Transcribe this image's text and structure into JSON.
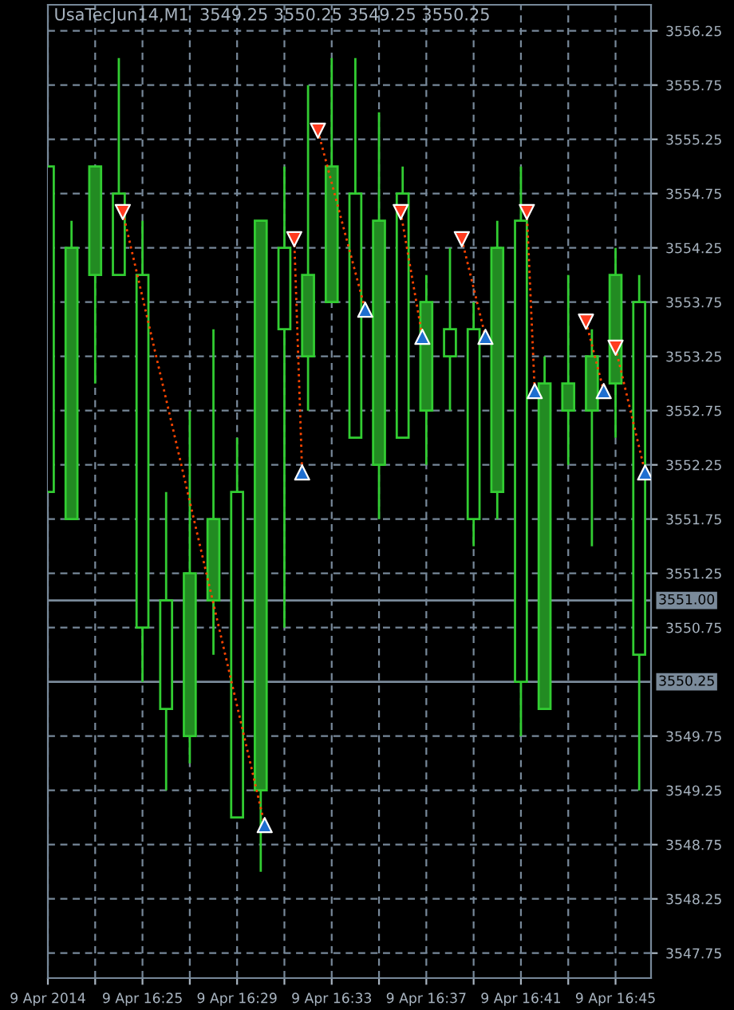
{
  "chart_data": {
    "type": "candlestick",
    "title": "UsaTecJun14,M1  3549.25 3550.25 3549.25 3550.25",
    "x": [
      "2014-04-09T16:21",
      "2014-04-09T16:22",
      "2014-04-09T16:23",
      "2014-04-09T16:24",
      "2014-04-09T16:25",
      "2014-04-09T16:26",
      "2014-04-09T16:27",
      "2014-04-09T16:28",
      "2014-04-09T16:29",
      "2014-04-09T16:30",
      "2014-04-09T16:31",
      "2014-04-09T16:32",
      "2014-04-09T16:33",
      "2014-04-09T16:34",
      "2014-04-09T16:35",
      "2014-04-09T16:36",
      "2014-04-09T16:37",
      "2014-04-09T16:38",
      "2014-04-09T16:39",
      "2014-04-09T16:40",
      "2014-04-09T16:41",
      "2014-04-09T16:42",
      "2014-04-09T16:43",
      "2014-04-09T16:44",
      "2014-04-09T16:45",
      "2014-04-09T16:46"
    ],
    "ohlc": [
      [
        3555.0,
        3555.0,
        3552.0,
        3552.0
      ],
      [
        3551.75,
        3554.5,
        3551.75,
        3554.25
      ],
      [
        3554.0,
        3555.0,
        3553.0,
        3555.0
      ],
      [
        3554.75,
        3556.0,
        3554.0,
        3554.0
      ],
      [
        3554.0,
        3554.5,
        3550.25,
        3550.75
      ],
      [
        3551.0,
        3552.0,
        3549.25,
        3550.0
      ],
      [
        3549.75,
        3552.75,
        3549.5,
        3551.25
      ],
      [
        3551.0,
        3553.5,
        3550.5,
        3551.75
      ],
      [
        3552.0,
        3552.5,
        3549.0,
        3549.0
      ],
      [
        3549.25,
        3554.5,
        3548.5,
        3554.5
      ],
      [
        3554.25,
        3555.0,
        3550.75,
        3553.5
      ],
      [
        3553.25,
        3555.75,
        3552.75,
        3554.0
      ],
      [
        3553.75,
        3556.0,
        3553.75,
        3555.0
      ],
      [
        3554.75,
        3556.0,
        3552.5,
        3552.5
      ],
      [
        3552.25,
        3555.5,
        3551.75,
        3554.5
      ],
      [
        3554.75,
        3555.0,
        3552.5,
        3552.5
      ],
      [
        3552.75,
        3554.0,
        3552.25,
        3553.75
      ],
      [
        3553.5,
        3554.25,
        3552.75,
        3553.25
      ],
      [
        3553.5,
        3553.75,
        3551.5,
        3551.75
      ],
      [
        3552.0,
        3554.5,
        3551.75,
        3554.25
      ],
      [
        3554.5,
        3555.0,
        3549.75,
        3550.25
      ],
      [
        3550.0,
        3553.25,
        3550.0,
        3553.0
      ],
      [
        3552.75,
        3554.0,
        3552.25,
        3553.0
      ],
      [
        3552.75,
        3553.5,
        3551.5,
        3553.25
      ],
      [
        3553.0,
        3554.25,
        3552.5,
        3554.0
      ],
      [
        3553.75,
        3554.0,
        3549.25,
        3550.5
      ]
    ],
    "color": "#32cd32",
    "colors": [
      "#000000",
      "#228b22",
      "#228b22",
      "#000000",
      "#000000",
      "#000000",
      "#228b22",
      "#228b22",
      "#000000",
      "#228b22",
      "#000000",
      "#228b22",
      "#228b22",
      "#000000",
      "#228b22",
      "#000000",
      "#228b22",
      "#000000",
      "#000000",
      "#228b22",
      "#000000",
      "#228b22",
      "#228b22",
      "#228b22",
      "#228b22",
      "#000000"
    ],
    "series": [
      {
        "type": "line",
        "color": "#ff4500",
        "line_style": "dotted",
        "x": [
          "2014-04-09T16:24:10",
          "2014-04-09T16:30:10"
        ],
        "values": [
          3554.58,
          3548.93
        ]
      },
      {
        "type": "line",
        "color": "#ff4500",
        "line_style": "dotted",
        "x": [
          "2014-04-09T16:31:25",
          "2014-04-09T16:31:45"
        ],
        "values": [
          3554.33,
          3552.18
        ]
      },
      {
        "type": "line",
        "color": "#ff4500",
        "line_style": "dotted",
        "x": [
          "2014-04-09T16:32:25",
          "2014-04-09T16:34:25"
        ],
        "values": [
          3555.33,
          3553.68
        ]
      },
      {
        "type": "line",
        "color": "#ff4500",
        "line_style": "dotted",
        "x": [
          "2014-04-09T16:35:55",
          "2014-04-09T16:36:50"
        ],
        "values": [
          3554.58,
          3553.43
        ]
      },
      {
        "type": "line",
        "color": "#ff4500",
        "line_style": "dotted",
        "x": [
          "2014-04-09T16:38:30",
          "2014-04-09T16:39:30"
        ],
        "values": [
          3554.33,
          3553.43
        ]
      },
      {
        "type": "line",
        "color": "#ff4500",
        "line_style": "dotted",
        "x": [
          "2014-04-09T16:41:15",
          "2014-04-09T16:41:35"
        ],
        "values": [
          3554.58,
          3552.93
        ]
      },
      {
        "type": "line",
        "color": "#ff4500",
        "line_style": "dotted",
        "x": [
          "2014-04-09T16:43:45",
          "2014-04-09T16:44:30"
        ],
        "values": [
          3553.57,
          3552.93
        ]
      },
      {
        "type": "line",
        "color": "#ff4500",
        "line_style": "dotted",
        "x": [
          "2014-04-09T16:45:00",
          "2014-04-09T16:46:15"
        ],
        "values": [
          3553.33,
          3552.18
        ]
      },
      {
        "type": "scatter",
        "color": "#ff3b1f",
        "marker": "triangle_down",
        "x": [
          "2014-04-09T16:24:10",
          "2014-04-09T16:31:25",
          "2014-04-09T16:32:25",
          "2014-04-09T16:35:55",
          "2014-04-09T16:38:30",
          "2014-04-09T16:41:15",
          "2014-04-09T16:43:45",
          "2014-04-09T16:45:00"
        ],
        "values": [
          3554.58,
          3554.33,
          3555.33,
          3554.58,
          3554.33,
          3554.58,
          3553.57,
          3553.33
        ]
      },
      {
        "type": "scatter",
        "color": "#1f6fd0",
        "marker": "triangle",
        "x": [
          "2014-04-09T16:30:10",
          "2014-04-09T16:31:45",
          "2014-04-09T16:34:25",
          "2014-04-09T16:36:50",
          "2014-04-09T16:39:30",
          "2014-04-09T16:41:35",
          "2014-04-09T16:44:30",
          "2014-04-09T16:46:15"
        ],
        "values": [
          3548.93,
          3552.18,
          3553.68,
          3553.43,
          3553.43,
          3552.93,
          3552.93,
          3552.18
        ]
      }
    ],
    "xlim": [
      "2014-04-09T16:21",
      "2014-04-09T16:46:30"
    ],
    "xticks": [
      {
        "value": "2014-04-09T16:21",
        "label": "9 Apr 2014"
      },
      {
        "value": "2014-04-09T16:23",
        "label": null
      },
      {
        "value": "2014-04-09T16:25",
        "label": "9 Apr 16:25"
      },
      {
        "value": "2014-04-09T16:27",
        "label": null
      },
      {
        "value": "2014-04-09T16:29",
        "label": "9 Apr 16:29"
      },
      {
        "value": "2014-04-09T16:31",
        "label": null
      },
      {
        "value": "2014-04-09T16:33",
        "label": "9 Apr 16:33"
      },
      {
        "value": "2014-04-09T16:35",
        "label": null
      },
      {
        "value": "2014-04-09T16:37",
        "label": "9 Apr 16:37"
      },
      {
        "value": "2014-04-09T16:39",
        "label": null
      },
      {
        "value": "2014-04-09T16:41",
        "label": "9 Apr 16:41"
      },
      {
        "value": "2014-04-09T16:43",
        "label": null
      },
      {
        "value": "2014-04-09T16:45",
        "label": "9 Apr 16:45"
      }
    ],
    "ylim": [
      3547.52,
      3556.49
    ],
    "yticks": [
      {
        "value": 3547.75,
        "label": "3547.75"
      },
      {
        "value": 3548.25,
        "label": "3548.25"
      },
      {
        "value": 3548.75,
        "label": "3548.75"
      },
      {
        "value": 3549.25,
        "label": "3549.25"
      },
      {
        "value": 3549.75,
        "label": "3549.75"
      },
      {
        "value": 3550.75,
        "label": "3550.75"
      },
      {
        "value": 3551.25,
        "label": "3551.25"
      },
      {
        "value": 3551.75,
        "label": "3551.75"
      },
      {
        "value": 3552.25,
        "label": "3552.25"
      },
      {
        "value": 3552.75,
        "label": "3552.75"
      },
      {
        "value": 3553.25,
        "label": "3553.25"
      },
      {
        "value": 3553.75,
        "label": "3553.75"
      },
      {
        "value": 3554.25,
        "label": "3554.25"
      },
      {
        "value": 3554.75,
        "label": "3554.75"
      },
      {
        "value": 3555.25,
        "label": "3555.25"
      },
      {
        "value": 3555.75,
        "label": "3555.75"
      },
      {
        "value": 3556.25,
        "label": "3556.25"
      }
    ],
    "ref_lines": [
      {
        "axis": "y",
        "value": 3551.0,
        "label": "3551.00",
        "color": "#7a8a9a"
      },
      {
        "axis": "y",
        "value": 3550.25,
        "label": "3550.25",
        "color": "#7a8a9a"
      }
    ],
    "grid": true
  }
}
